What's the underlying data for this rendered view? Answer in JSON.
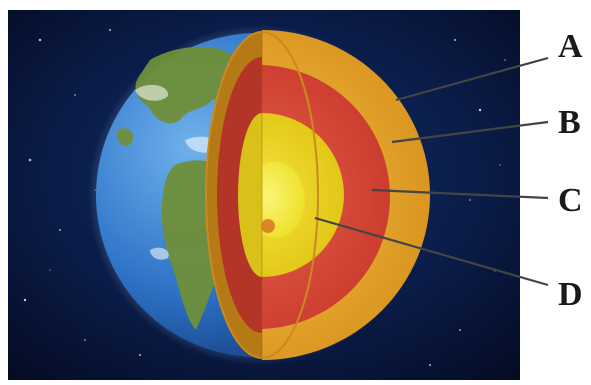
{
  "diagram": {
    "labels": [
      {
        "id": "A",
        "text": "A",
        "layer": "crust"
      },
      {
        "id": "B",
        "text": "B",
        "layer": "mantle"
      },
      {
        "id": "C",
        "text": "C",
        "layer": "outer-core"
      },
      {
        "id": "D",
        "text": "D",
        "layer": "inner-core"
      }
    ],
    "colors": {
      "space": "#061231",
      "ocean": "#2f74c8",
      "crust": "#e7a82a",
      "mantle": "#d9463a",
      "outer_core": "#ead21c",
      "inner_core": "#f4ee3a",
      "leader_line": "#444444"
    }
  }
}
